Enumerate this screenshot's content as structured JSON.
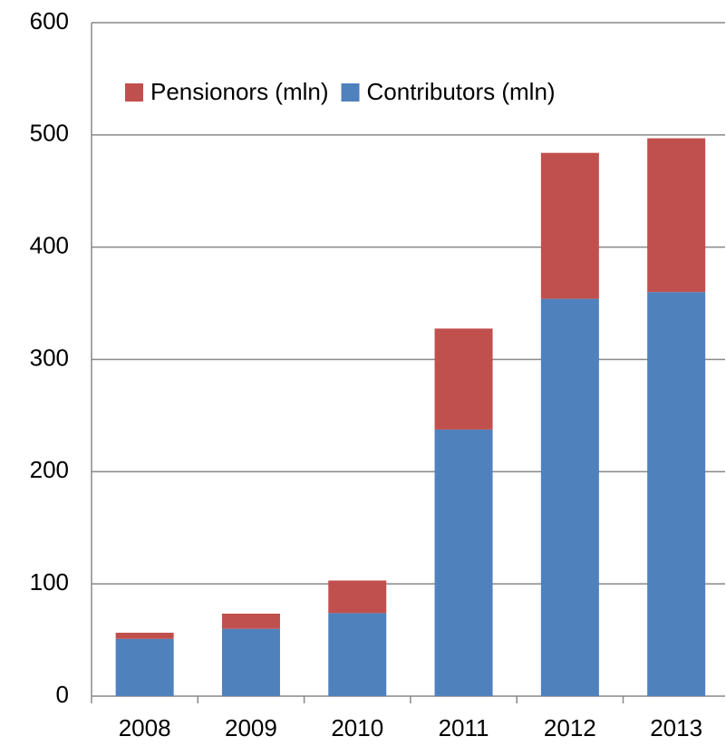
{
  "chart_data": {
    "type": "stacked_bar",
    "categories": [
      "2008",
      "2009",
      "2010",
      "2011",
      "2012",
      "2013"
    ],
    "series": [
      {
        "name": "Pensionors (mln)",
        "color": "#c0504d",
        "values": [
          5.5,
          13.5,
          29,
          90,
          130,
          137
        ]
      },
      {
        "name": "Contributors (mln)",
        "color": "#4f81bd",
        "values": [
          51,
          60,
          74,
          237.5,
          354,
          360
        ]
      }
    ],
    "ylim": [
      0,
      600
    ],
    "yticks": [
      0,
      100,
      200,
      300,
      400,
      500,
      600
    ],
    "grid": true,
    "legend": "top"
  }
}
